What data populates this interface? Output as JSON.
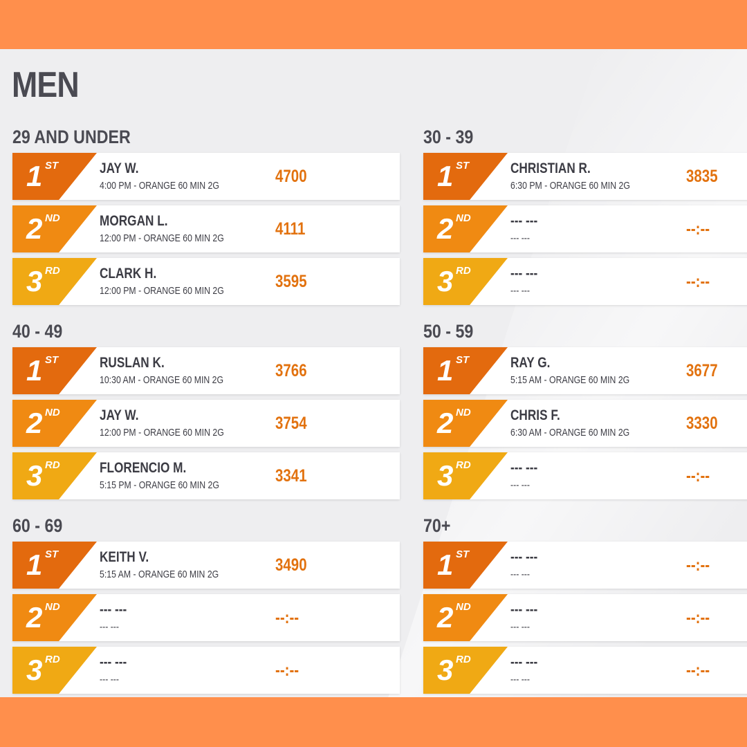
{
  "page_title": "MEN",
  "groups": [
    {
      "title": "29 AND UNDER",
      "rows": [
        {
          "place": "1",
          "suffix": "ST",
          "name": "JAY W.",
          "sub": "4:00 PM - ORANGE 60 MIN 2G",
          "score": "4700"
        },
        {
          "place": "2",
          "suffix": "ND",
          "name": "MORGAN L.",
          "sub": "12:00 PM - ORANGE 60 MIN 2G",
          "score": "4111"
        },
        {
          "place": "3",
          "suffix": "RD",
          "name": "CLARK H.",
          "sub": "12:00 PM - ORANGE 60 MIN 2G",
          "score": "3595"
        }
      ]
    },
    {
      "title": "30 - 39",
      "rows": [
        {
          "place": "1",
          "suffix": "ST",
          "name": "CHRISTIAN R.",
          "sub": "6:30 PM - ORANGE 60 MIN 2G",
          "score": "3835"
        },
        {
          "place": "2",
          "suffix": "ND",
          "name": "--- ---",
          "sub": "--- ---",
          "score": "--:--"
        },
        {
          "place": "3",
          "suffix": "RD",
          "name": "--- ---",
          "sub": "--- ---",
          "score": "--:--"
        }
      ]
    },
    {
      "title": "40 - 49",
      "rows": [
        {
          "place": "1",
          "suffix": "ST",
          "name": "RUSLAN K.",
          "sub": "10:30 AM - ORANGE 60 MIN 2G",
          "score": "3766"
        },
        {
          "place": "2",
          "suffix": "ND",
          "name": "JAY W.",
          "sub": "12:00 PM - ORANGE 60 MIN 2G",
          "score": "3754"
        },
        {
          "place": "3",
          "suffix": "RD",
          "name": "FLORENCIO M.",
          "sub": "5:15 PM - ORANGE 60 MIN 2G",
          "score": "3341"
        }
      ]
    },
    {
      "title": "50 - 59",
      "rows": [
        {
          "place": "1",
          "suffix": "ST",
          "name": "RAY G.",
          "sub": "5:15 AM - ORANGE 60 MIN 2G",
          "score": "3677"
        },
        {
          "place": "2",
          "suffix": "ND",
          "name": "CHRIS F.",
          "sub": "6:30 AM - ORANGE 60 MIN 2G",
          "score": "3330"
        },
        {
          "place": "3",
          "suffix": "RD",
          "name": "--- ---",
          "sub": "--- ---",
          "score": "--:--"
        }
      ]
    },
    {
      "title": "60 - 69",
      "rows": [
        {
          "place": "1",
          "suffix": "ST",
          "name": "KEITH V.",
          "sub": "5:15 AM - ORANGE 60 MIN 2G",
          "score": "3490"
        },
        {
          "place": "2",
          "suffix": "ND",
          "name": "--- ---",
          "sub": "--- ---",
          "score": "--:--"
        },
        {
          "place": "3",
          "suffix": "RD",
          "name": "--- ---",
          "sub": "--- ---",
          "score": "--:--"
        }
      ]
    },
    {
      "title": "70+",
      "rows": [
        {
          "place": "1",
          "suffix": "ST",
          "name": "--- ---",
          "sub": "--- ---",
          "score": "--:--"
        },
        {
          "place": "2",
          "suffix": "ND",
          "name": "--- ---",
          "sub": "--- ---",
          "score": "--:--"
        },
        {
          "place": "3",
          "suffix": "RD",
          "name": "--- ---",
          "sub": "--- ---",
          "score": "--:--"
        }
      ]
    }
  ],
  "colors": {
    "first": "#e36a0e",
    "second": "#f08a12",
    "third": "#f0a914",
    "score": "#e2720f",
    "frame": "#ff8f4c"
  }
}
